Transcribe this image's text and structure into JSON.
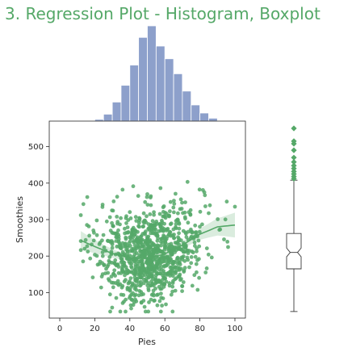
{
  "chart_data": {
    "type": "scatter",
    "title": "3. Regression Plot - Histogram, Boxplot",
    "xlabel": "Pies",
    "ylabel": "Smoothies",
    "xlim": [
      -6,
      106
    ],
    "ylim": [
      30,
      570
    ],
    "xticks": [
      0,
      20,
      40,
      60,
      80,
      100
    ],
    "yticks": [
      100,
      200,
      300,
      400,
      500
    ],
    "grid": false,
    "scatter_color": "#55a868",
    "hist_color": "#8da0cb",
    "scatter": {
      "n_points": 1000,
      "x_mean": 52,
      "x_sd": 15,
      "y_mean": 220,
      "y_sd": 65,
      "trend": "quadratic",
      "x_range": [
        12,
        100
      ],
      "y_range": [
        48,
        550
      ]
    },
    "regression_line": {
      "x": [
        12,
        20,
        30,
        40,
        50,
        60,
        70,
        80,
        90,
        100
      ],
      "y": [
        243,
        226,
        207,
        195,
        194,
        206,
        230,
        260,
        280,
        285
      ]
    },
    "histogram": {
      "bin_edges": [
        20,
        25,
        30,
        35,
        40,
        45,
        50,
        55,
        60,
        65,
        70,
        75,
        80,
        85,
        90
      ],
      "counts": [
        3,
        12,
        33,
        62,
        97,
        145,
        165,
        130,
        108,
        82,
        52,
        28,
        14,
        5
      ]
    },
    "boxplot": {
      "min": 48,
      "q1": 165,
      "median": 210,
      "q3": 262,
      "whisker_high": 408,
      "notch": [
        198,
        222
      ],
      "outliers": [
        412,
        418,
        425,
        432,
        440,
        448,
        458,
        470,
        490,
        508,
        515,
        550
      ]
    }
  }
}
